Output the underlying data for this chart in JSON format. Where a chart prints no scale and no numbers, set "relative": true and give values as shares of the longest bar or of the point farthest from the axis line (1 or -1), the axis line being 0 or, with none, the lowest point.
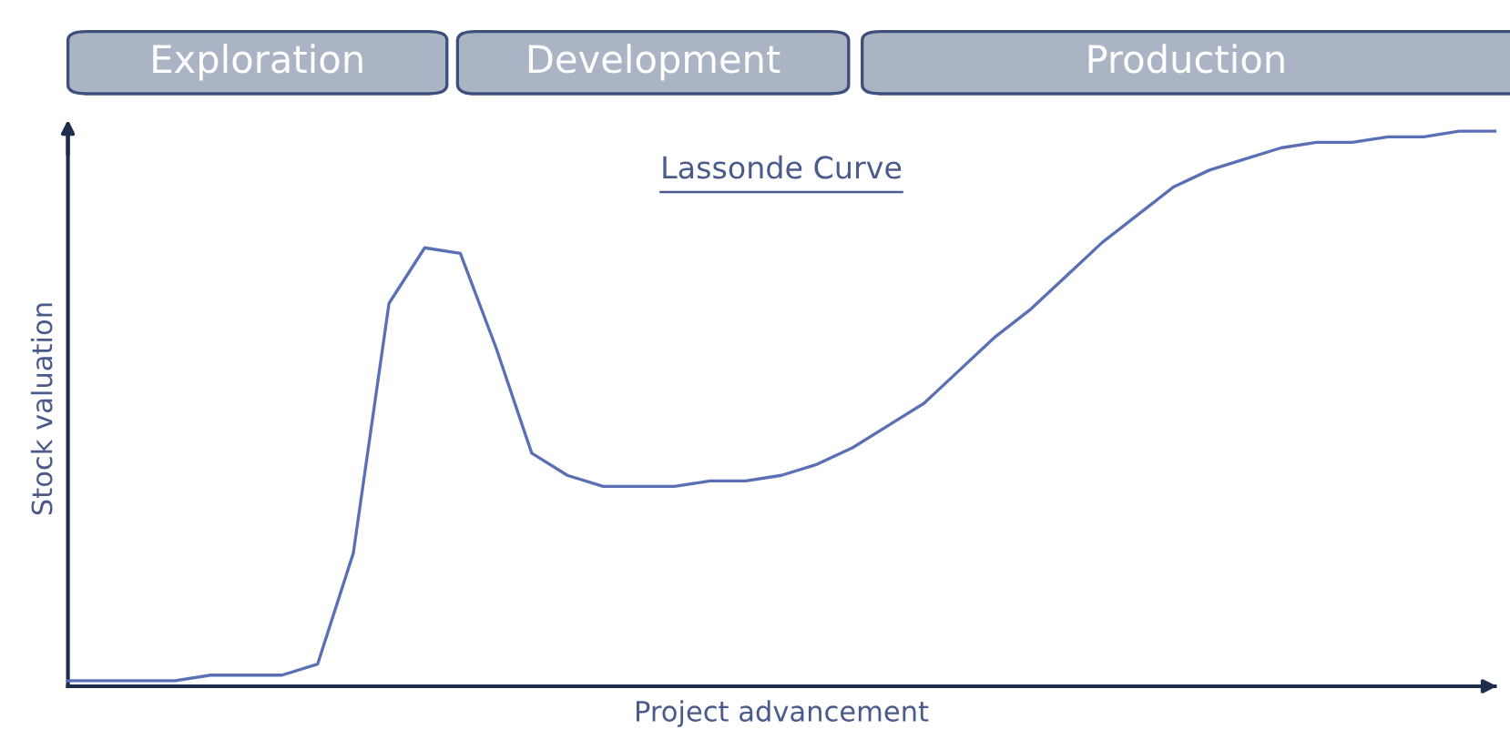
{
  "chart_data": {
    "type": "line",
    "title": "Lassonde Curve",
    "xlabel": "Project advancement",
    "ylabel": "Stock valuation",
    "annotations": [
      "Exploration",
      "Development",
      "Production"
    ],
    "relative": true,
    "color": "#5b6fb5",
    "categories": [
      null,
      null,
      null,
      null,
      null,
      null,
      null,
      null,
      null,
      null,
      null,
      null,
      null,
      null,
      null,
      null,
      null,
      null,
      null,
      null,
      null,
      null,
      null,
      null,
      null,
      null,
      null,
      null,
      null,
      null,
      null,
      null,
      null,
      null,
      null,
      null,
      null,
      null,
      null,
      null,
      null
    ],
    "values": [
      0.01,
      0.01,
      0.01,
      0.01,
      0.02,
      0.02,
      0.02,
      0.04,
      0.24,
      0.69,
      0.79,
      0.78,
      0.61,
      0.42,
      0.38,
      0.36,
      0.36,
      0.36,
      0.37,
      0.37,
      0.38,
      0.4,
      0.43,
      0.47,
      0.51,
      0.57,
      0.63,
      0.68,
      0.74,
      0.8,
      0.85,
      0.9,
      0.93,
      0.95,
      0.97,
      0.98,
      0.98,
      0.99,
      0.99,
      1.0,
      1.0
    ]
  }
}
